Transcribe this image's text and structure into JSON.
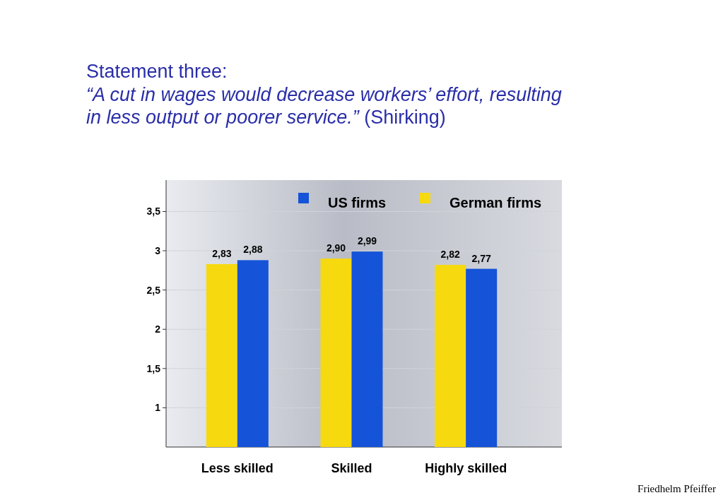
{
  "chart_data": {
    "type": "bar",
    "title": "Statement three:",
    "subtitle": "“A cut in wages would decrease workers’ effort, resulting in less output or poorer service.” (Shirking)",
    "categories": [
      "Less skilled",
      "Skilled",
      "Highly skilled"
    ],
    "series": [
      {
        "name": "German firms",
        "color": "#f7d90f",
        "values": [
          2.83,
          2.9,
          2.82
        ],
        "value_labels": [
          "2,83",
          "2,90",
          "2,82"
        ]
      },
      {
        "name": "US firms",
        "color": "#1553d8",
        "values": [
          2.88,
          2.99,
          2.77
        ],
        "value_labels": [
          "2,88",
          "2,99",
          "2,77"
        ]
      }
    ],
    "ylim": [
      0.5,
      3.9
    ],
    "yticks": [
      1,
      {
        "value": 1.5,
        "label": "1,5"
      },
      2,
      {
        "value": 2.5,
        "label": "2,5"
      },
      3,
      {
        "value": 3.5,
        "label": "3,5"
      }
    ],
    "grid": "y",
    "legend": "top right",
    "annotations": [
      "Friedhelm Pfeiffer"
    ]
  }
}
